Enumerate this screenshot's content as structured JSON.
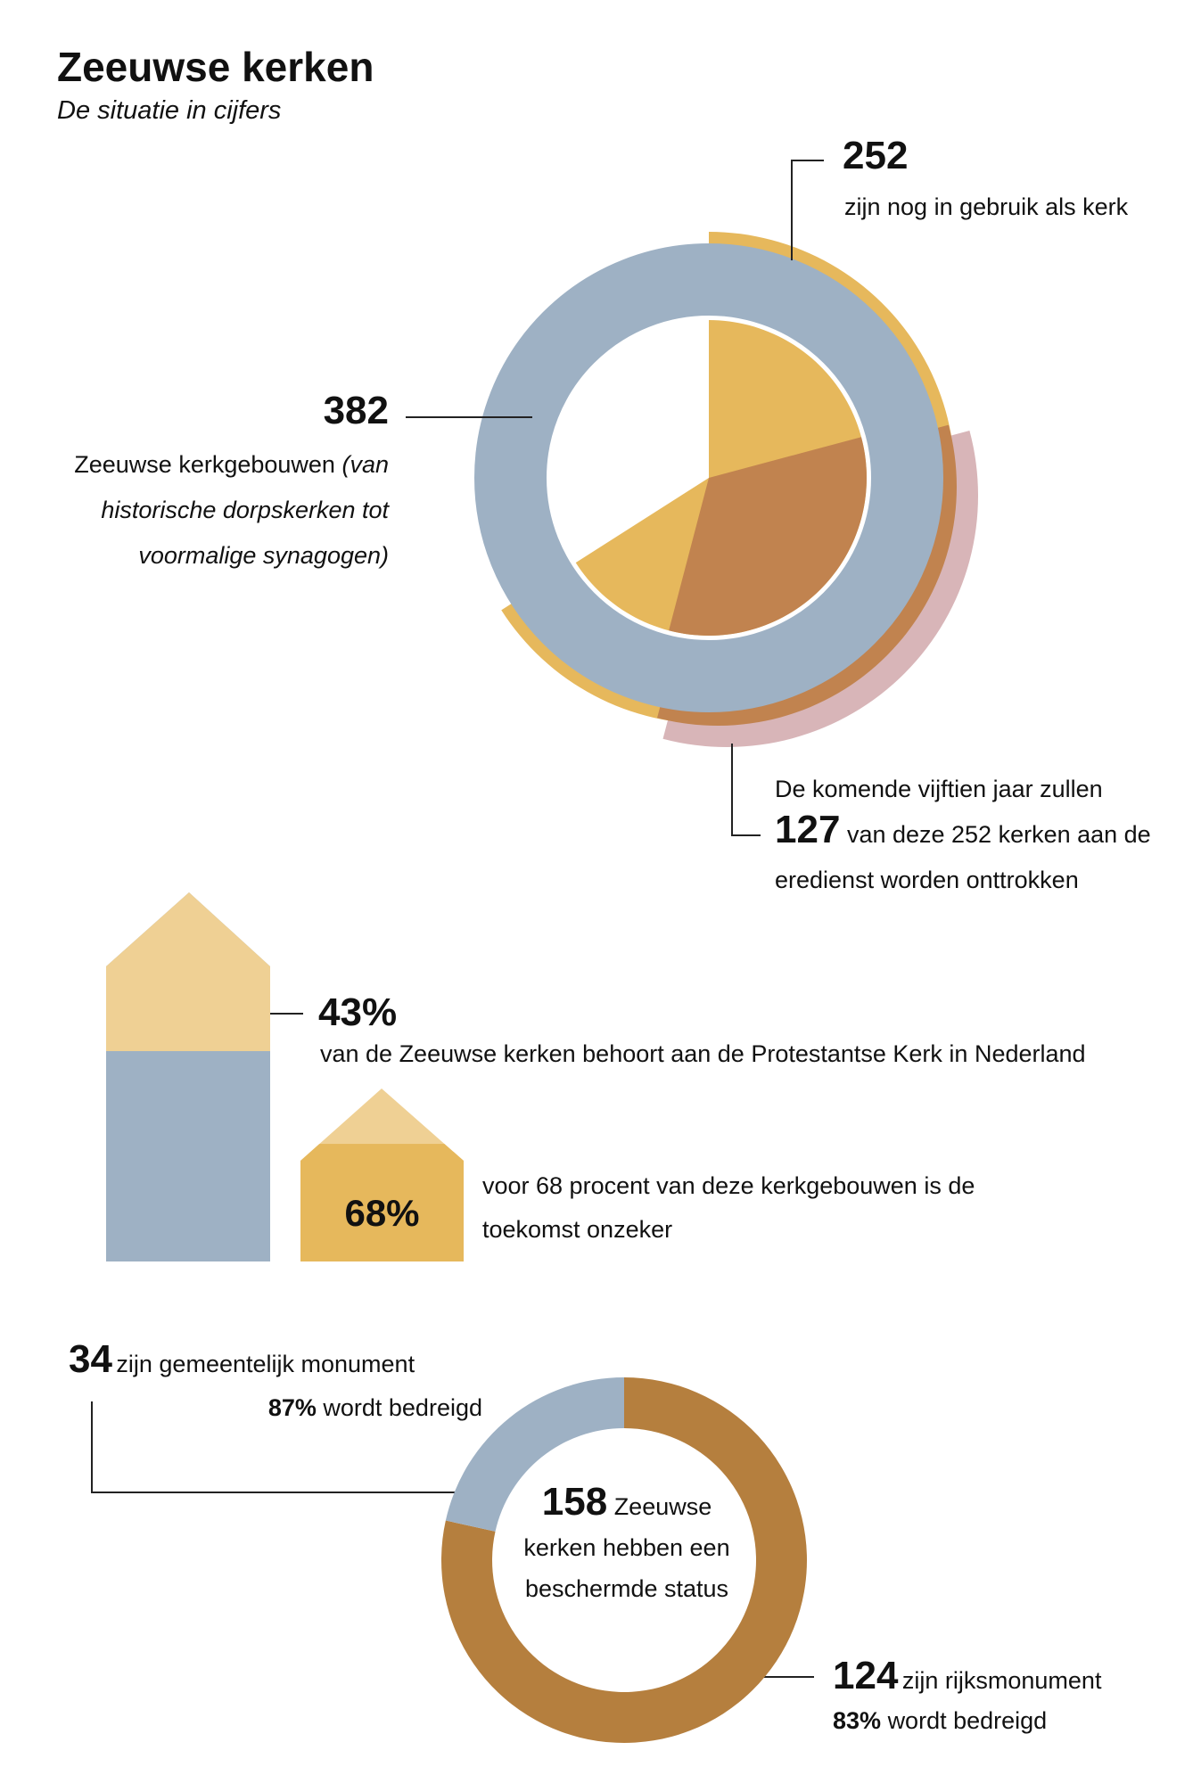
{
  "header": {
    "title": "Zeeuwse kerken",
    "subtitle": "De situatie in cijfers"
  },
  "buildings": {
    "total": 382,
    "total_text": "Zeeuwse kerkgebouwen",
    "total_note": "(van historische dorpskerken tot voormalige synagogen)",
    "in_use": 252,
    "in_use_text": "zijn nog in gebruik als kerk",
    "withdrawn_intro": "De komende vijftien jaar zullen",
    "withdrawn": 127,
    "withdrawn_text": "van deze 252 kerken aan de eredienst worden onttrokken"
  },
  "protestant": {
    "share": {
      "value": 43,
      "label": "43%"
    },
    "text": "van de Zeeuwse kerken behoort aan de Protestantse Kerk in Nederland",
    "uncertain": {
      "value": 68,
      "label": "68%"
    },
    "uncertain_text": "voor 68 procent van deze kerkgebouwen is de toekomst onzeker"
  },
  "protected": {
    "total": 158,
    "total_text": "Zeeuwse kerken hebben een beschermde status",
    "municipal": 34,
    "municipal_text": "zijn gemeentelijk monument",
    "municipal_threat": "87%",
    "municipal_threat_text": "wordt bedreigd",
    "national": 124,
    "national_text": "zijn rijksmonument",
    "national_threat": "83%",
    "national_threat_text": "wordt bedreigd"
  }
}
